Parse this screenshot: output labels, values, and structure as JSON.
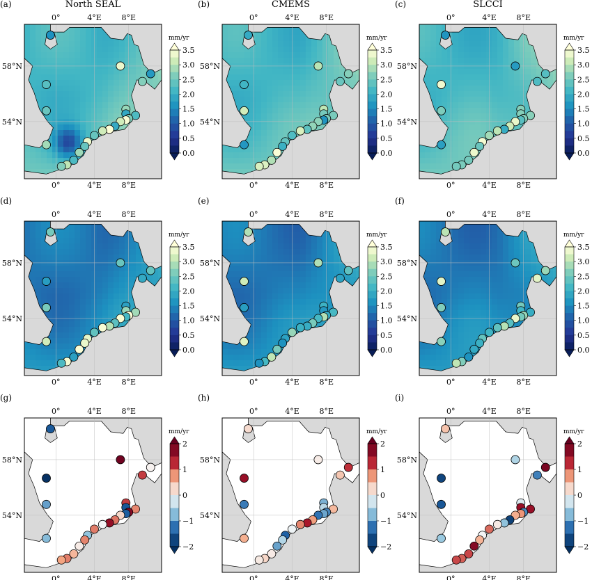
{
  "panel_tags": [
    "(a)",
    "(b)",
    "(c)",
    "(d)",
    "(e)",
    "(f)",
    "(g)",
    "(h)",
    "(i)"
  ],
  "column_titles": [
    "North SEAL",
    "CMEMS",
    "SLCCI"
  ],
  "lon_ticks": [
    "0°",
    "4°E",
    "8°E"
  ],
  "lat_ticks": [
    "58°N",
    "54°N"
  ],
  "colors": {
    "land": "#d9d9d9",
    "sea_white": "#ffffff",
    "frame": "#000000"
  },
  "chart_data": [
    {
      "type": "heatmap",
      "panel": "(a)",
      "title": "North SEAL",
      "colorbar": {
        "unit": "mm/yr",
        "range": [
          0,
          3.5
        ],
        "ticks": [
          "0.0",
          "0.5",
          "1.0",
          "1.5",
          "2.0",
          "2.5",
          "3.0",
          "3.5"
        ],
        "colormap": "YlGnBu_r"
      }
    },
    {
      "type": "heatmap",
      "panel": "(b)",
      "title": "CMEMS",
      "colorbar": {
        "unit": "mm/yr",
        "range": [
          0,
          3.5
        ],
        "ticks": [
          "0.0",
          "0.5",
          "1.0",
          "1.5",
          "2.0",
          "2.5",
          "3.0",
          "3.5"
        ],
        "colormap": "YlGnBu_r"
      }
    },
    {
      "type": "heatmap",
      "panel": "(c)",
      "title": "SLCCI",
      "colorbar": {
        "unit": "mm/yr",
        "range": [
          0,
          3.5
        ],
        "ticks": [
          "0.0",
          "0.5",
          "1.0",
          "1.5",
          "2.0",
          "2.5",
          "3.0",
          "3.5"
        ],
        "colormap": "YlGnBu_r"
      }
    },
    {
      "type": "heatmap",
      "panel": "(d)",
      "colorbar": {
        "unit": "mm/yr",
        "range": [
          0,
          3.5
        ],
        "ticks": [
          "0.0",
          "0.5",
          "1.0",
          "1.5",
          "2.0",
          "2.5",
          "3.0",
          "3.5"
        ],
        "colormap": "YlGnBu_r"
      }
    },
    {
      "type": "heatmap",
      "panel": "(e)",
      "colorbar": {
        "unit": "mm/yr",
        "range": [
          0,
          3.5
        ],
        "ticks": [
          "0.0",
          "0.5",
          "1.0",
          "1.5",
          "2.0",
          "2.5",
          "3.0",
          "3.5"
        ],
        "colormap": "YlGnBu_r"
      }
    },
    {
      "type": "heatmap",
      "panel": "(f)",
      "colorbar": {
        "unit": "mm/yr",
        "range": [
          0,
          3.5
        ],
        "ticks": [
          "0.0",
          "0.5",
          "1.0",
          "1.5",
          "2.0",
          "2.5",
          "3.0",
          "3.5"
        ],
        "colormap": "YlGnBu_r"
      }
    },
    {
      "type": "scatter",
      "panel": "(g)",
      "colorbar": {
        "unit": "mm/yr",
        "range": [
          -2,
          2
        ],
        "ticks": [
          "−2",
          "−1",
          "0",
          "1",
          "2"
        ],
        "colormap": "RdBu_r"
      }
    },
    {
      "type": "scatter",
      "panel": "(h)",
      "colorbar": {
        "unit": "mm/yr",
        "range": [
          -2,
          2
        ],
        "ticks": [
          "−2",
          "−1",
          "0",
          "1",
          "2"
        ],
        "colormap": "RdBu_r"
      }
    },
    {
      "type": "scatter",
      "panel": "(i)",
      "colorbar": {
        "unit": "mm/yr",
        "range": [
          -2,
          2
        ],
        "ticks": [
          "−2",
          "−1",
          "0",
          "1",
          "2"
        ],
        "colormap": "RdBu_r"
      }
    }
  ]
}
